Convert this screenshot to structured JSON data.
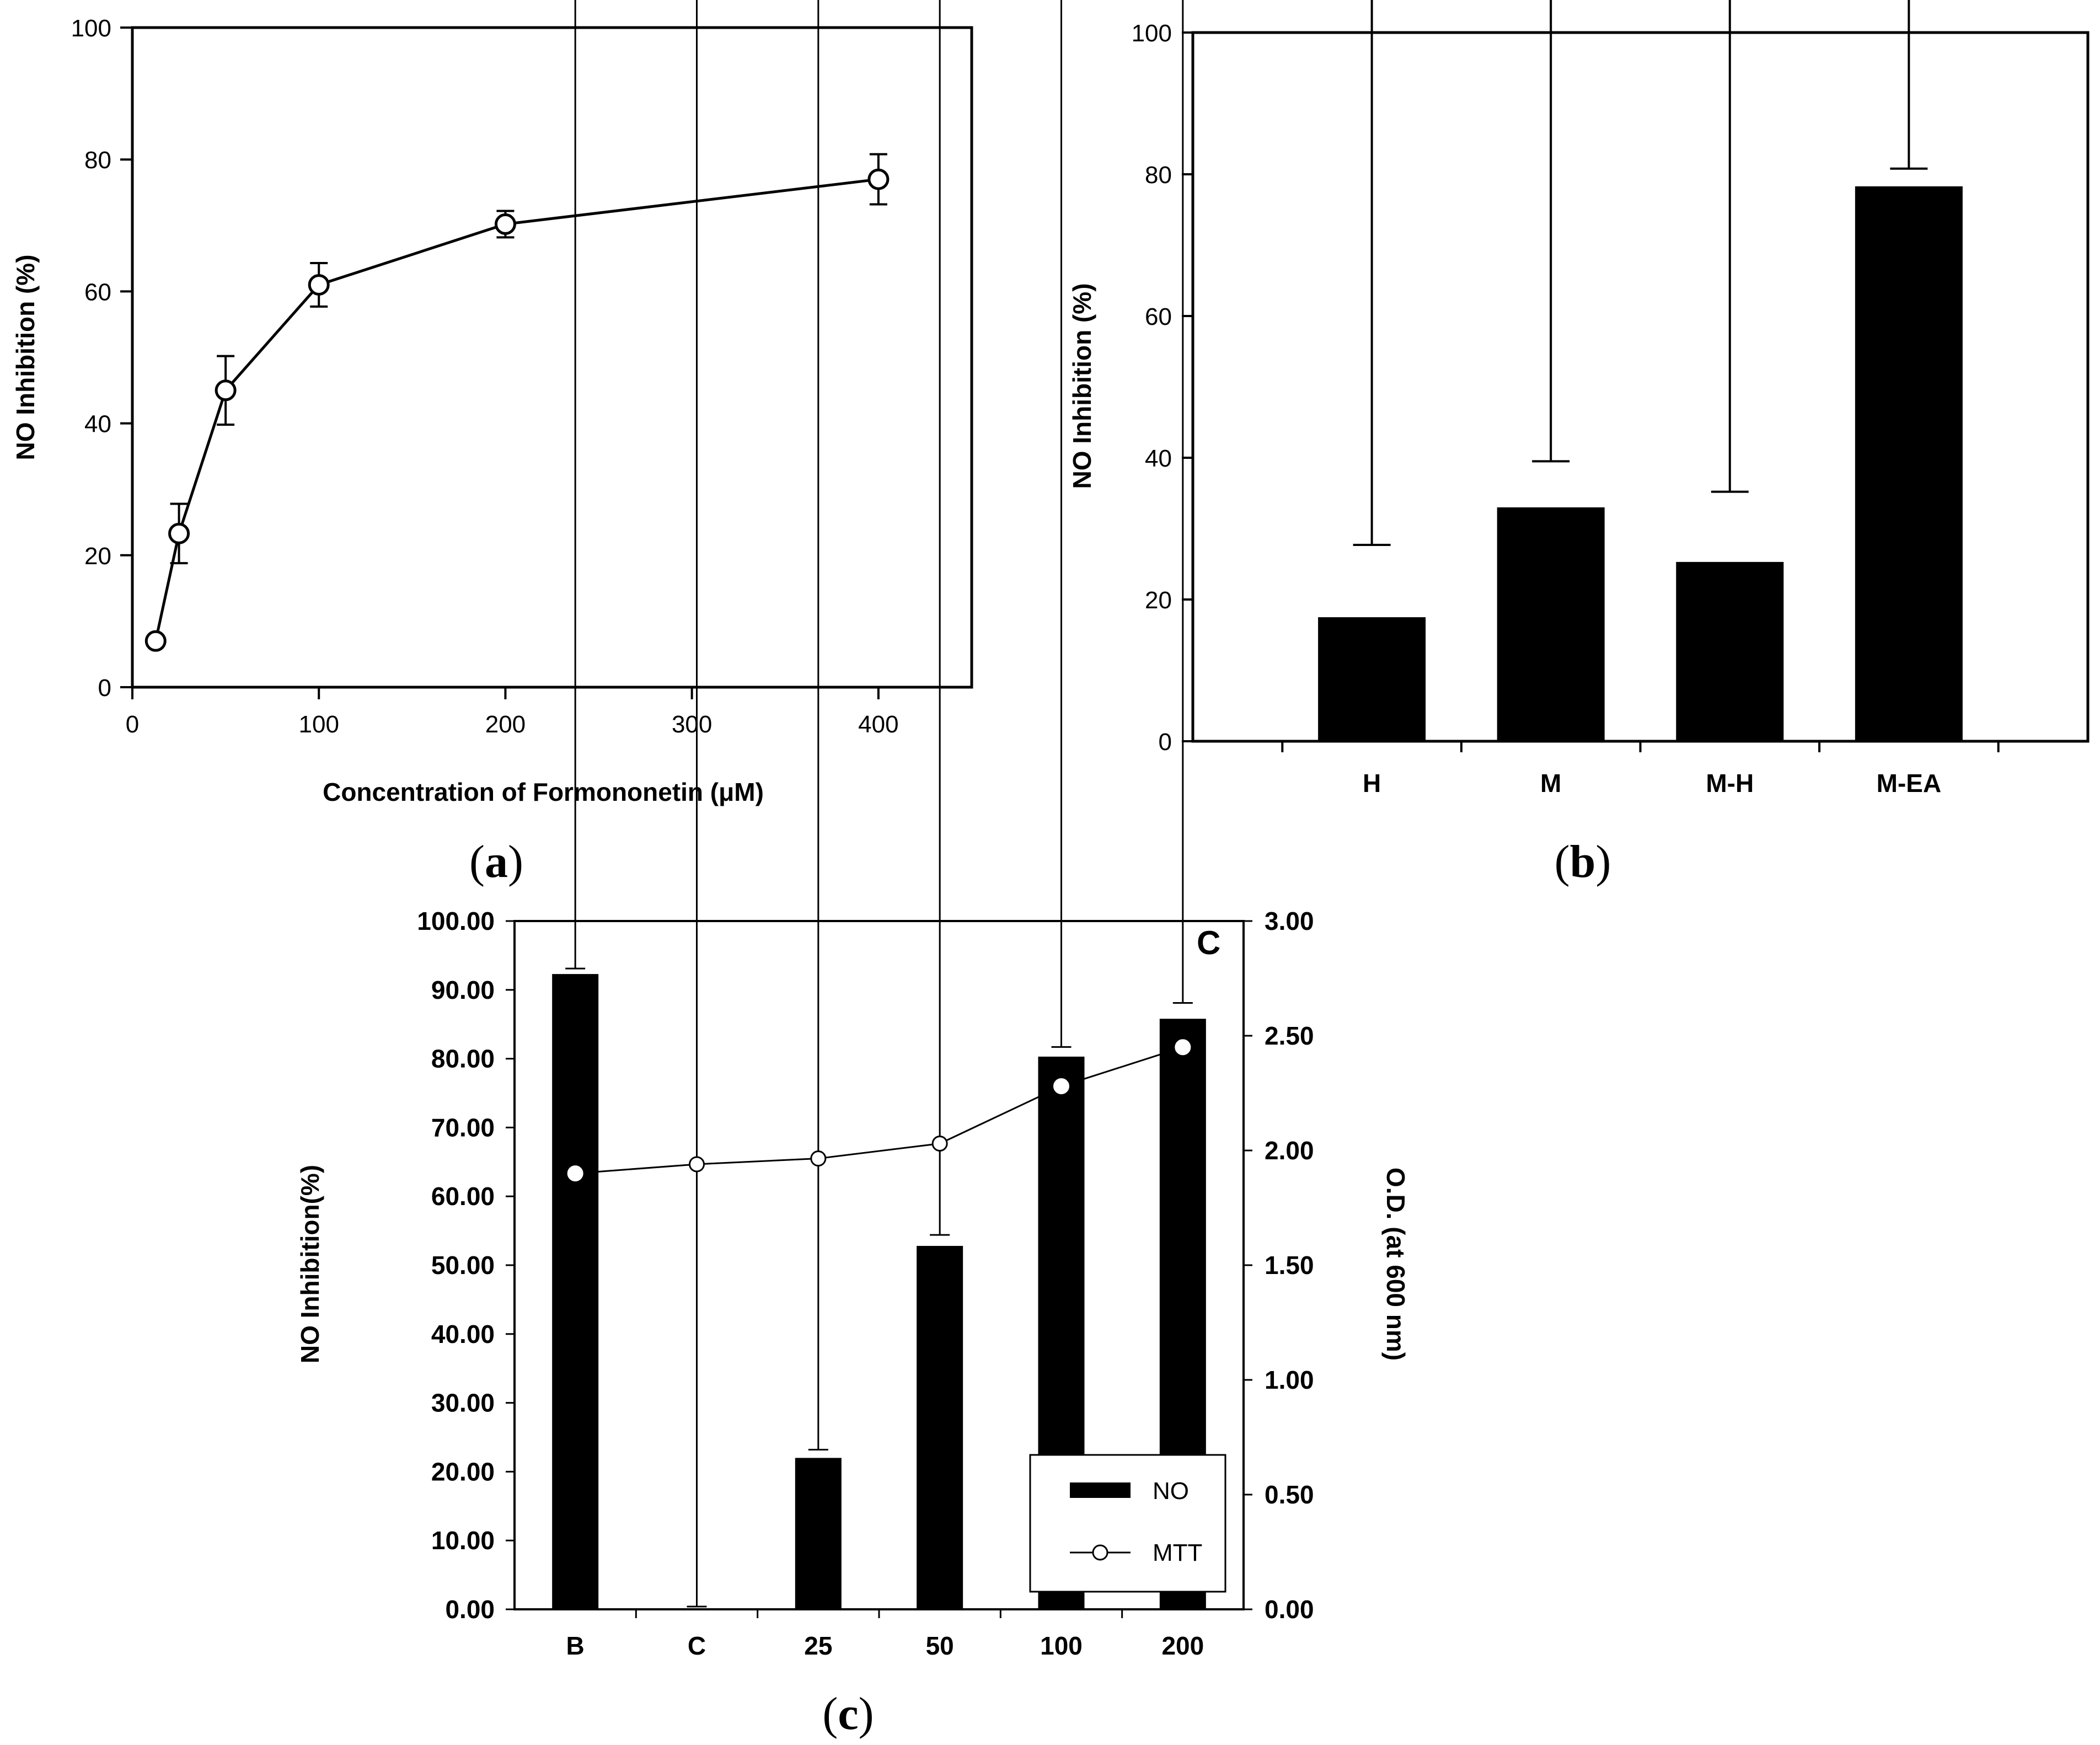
{
  "panels": {
    "a": {
      "label_open": "(",
      "label_letter": "a",
      "label_close": ")"
    },
    "b": {
      "label_open": "(",
      "label_letter": "b",
      "label_close": ")"
    },
    "c": {
      "label_open": "(",
      "label_letter": "c",
      "label_close": ")"
    }
  },
  "chart_data": [
    {
      "id": "a",
      "type": "line",
      "title": "",
      "xlabel": "Concentration of Formononetin (μM)",
      "ylabel": "NO Inhibition (%)",
      "xlim": [
        0,
        450
      ],
      "ylim": [
        0,
        100
      ],
      "xticks": [
        0,
        100,
        200,
        300,
        400
      ],
      "yticks": [
        0,
        20,
        40,
        60,
        80,
        100
      ],
      "series": [
        {
          "name": "Formononetin",
          "marker": "open-circle",
          "x": [
            12.5,
            25,
            50,
            100,
            200,
            400
          ],
          "y": [
            7,
            23.3,
            45,
            61,
            70.2,
            77
          ],
          "err": [
            0.8,
            4.5,
            5.2,
            3.3,
            2.0,
            3.8
          ]
        }
      ]
    },
    {
      "id": "b",
      "type": "bar",
      "title": "",
      "xlabel": "",
      "ylabel": "NO Inhibition (%)",
      "ylim": [
        0,
        100
      ],
      "yticks": [
        0,
        20,
        40,
        60,
        80,
        100
      ],
      "categories": [
        "H",
        "M",
        "M-H",
        "M-EA"
      ],
      "values": [
        17.5,
        33,
        25.3,
        78.3
      ],
      "err": [
        10.2,
        6.5,
        9.9,
        2.5
      ]
    },
    {
      "id": "c",
      "type": "bar",
      "title": "",
      "corner_label": "C",
      "xlabel": "",
      "ylabel": "NO Inhibition(%)",
      "y2label": "O.D. (at 600 nm)",
      "ylim": [
        0,
        100
      ],
      "y2lim": [
        0,
        3
      ],
      "yticks": [
        "0.00",
        "10.00",
        "20.00",
        "30.00",
        "40.00",
        "50.00",
        "60.00",
        "70.00",
        "80.00",
        "90.00",
        "100.00"
      ],
      "y2ticks": [
        "0.00",
        "0.50",
        "1.00",
        "1.50",
        "2.00",
        "2.50",
        "3.00"
      ],
      "categories": [
        "B",
        "C",
        "25",
        "50",
        "100",
        "200"
      ],
      "series": [
        {
          "name": "NO",
          "kind": "bar",
          "axis": "left",
          "values": [
            92.3,
            0,
            22,
            52.8,
            80.3,
            85.8
          ],
          "err": [
            0.8,
            0.4,
            1.2,
            1.6,
            1.4,
            2.3
          ]
        },
        {
          "name": "MTT",
          "kind": "line",
          "axis": "right",
          "marker": "open-circle",
          "values": [
            1.9,
            1.94,
            1.965,
            2.03,
            2.28,
            2.45
          ]
        }
      ],
      "legend": [
        "NO",
        "MTT"
      ]
    }
  ]
}
